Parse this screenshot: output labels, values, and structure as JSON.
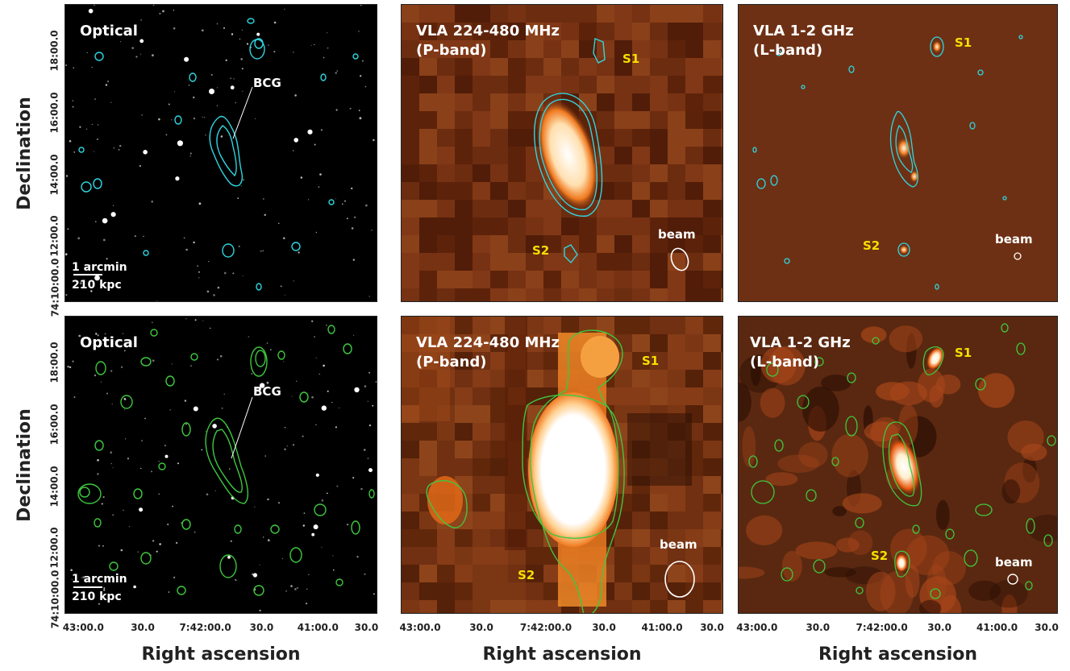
{
  "axes": {
    "ylabel": "Declination",
    "xlabel": "Right ascension",
    "dec_ticks": [
      "74:10:00.0",
      "12:00.0",
      "14:00.0",
      "16:00.0",
      "18:00.0"
    ],
    "ra_ticks": [
      "43:00.0",
      "30.0",
      "7:42:00.0",
      "30.0",
      "41:00.0",
      "30.0"
    ]
  },
  "panels": {
    "optical_top": {
      "title": "Optical",
      "bcg": "BCG",
      "scale_angle": "1 arcmin",
      "scale_dist": "210 kpc"
    },
    "pband_top": {
      "title_line1": "VLA 224-480 MHz",
      "title_line2": "(P-band)",
      "s1": "S1",
      "s2": "S2",
      "beam": "beam"
    },
    "lband_top": {
      "title_line1": "VLA 1-2 GHz",
      "title_line2": "(L-band)",
      "s1": "S1",
      "s2": "S2",
      "beam": "beam"
    },
    "optical_bottom": {
      "title": "Optical",
      "bcg": "BCG",
      "scale_angle": "1 arcmin",
      "scale_dist": "210 kpc"
    },
    "pband_bottom": {
      "title_line1": "VLA 224-480 MHz",
      "title_line2": "(P-band)",
      "s1": "S1",
      "s2": "S2",
      "beam": "beam"
    },
    "lband_bottom": {
      "title_line1": "VLA 1-2 GHz",
      "title_line2": "(L-band)",
      "s1": "S1",
      "s2": "S2",
      "beam": "beam"
    }
  },
  "colors": {
    "contour_top": "#2fd6e0",
    "contour_bottom": "#3ec83e",
    "source_label": "#f5e000",
    "radio_bg": "#6a2a10",
    "radio_peak": "#ffffff"
  }
}
